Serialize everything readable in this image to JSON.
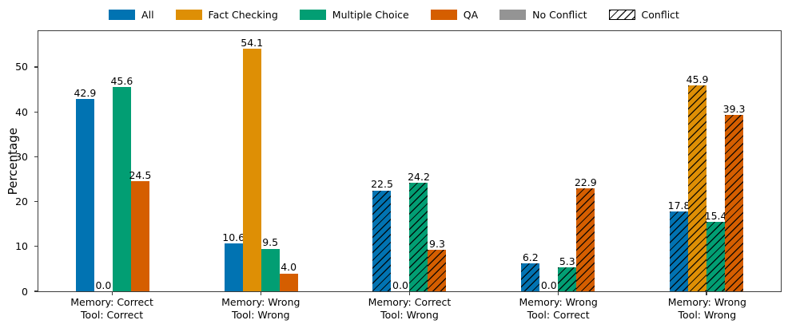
{
  "figure": {
    "background": "#ffffff"
  },
  "chart_data": {
    "type": "bar",
    "title": "",
    "xlabel": "",
    "ylabel": "Percentage",
    "ylim": [
      0,
      58
    ],
    "yticks": [
      0,
      10,
      20,
      30,
      40,
      50
    ],
    "grid": false,
    "legend_position": "top center",
    "categories": [
      [
        "Memory: Correct",
        "Tool: Correct"
      ],
      [
        "Memory: Wrong",
        "Tool: Wrong"
      ],
      [
        "Memory: Correct",
        "Tool: Wrong"
      ],
      [
        "Memory: Wrong",
        "Tool: Correct"
      ],
      [
        "Memory: Wrong",
        "Tool: Wrong"
      ]
    ],
    "conflict_groups": [
      false,
      false,
      true,
      true,
      true
    ],
    "series": [
      {
        "name": "All",
        "color": "#0173B2",
        "values": [
          42.9,
          10.6,
          22.5,
          6.2,
          17.8
        ]
      },
      {
        "name": "Fact Checking",
        "color": "#DE8F05",
        "values": [
          0.0,
          54.1,
          0.0,
          0.0,
          45.9
        ]
      },
      {
        "name": "Multiple Choice",
        "color": "#029E73",
        "values": [
          45.6,
          9.5,
          24.2,
          5.3,
          15.4
        ]
      },
      {
        "name": "QA",
        "color": "#D55E00",
        "values": [
          24.5,
          4.0,
          9.3,
          22.9,
          39.3
        ]
      }
    ],
    "legend": [
      {
        "label": "All",
        "color": "#0173B2",
        "hatch": false
      },
      {
        "label": "Fact Checking",
        "color": "#DE8F05",
        "hatch": false
      },
      {
        "label": "Multiple Choice",
        "color": "#029E73",
        "hatch": false
      },
      {
        "label": "QA",
        "color": "#D55E00",
        "hatch": false
      },
      {
        "label": "No Conflict",
        "color": "#949494",
        "hatch": false
      },
      {
        "label": "Conflict",
        "color": "#FFFFFF",
        "hatch": true
      }
    ]
  }
}
